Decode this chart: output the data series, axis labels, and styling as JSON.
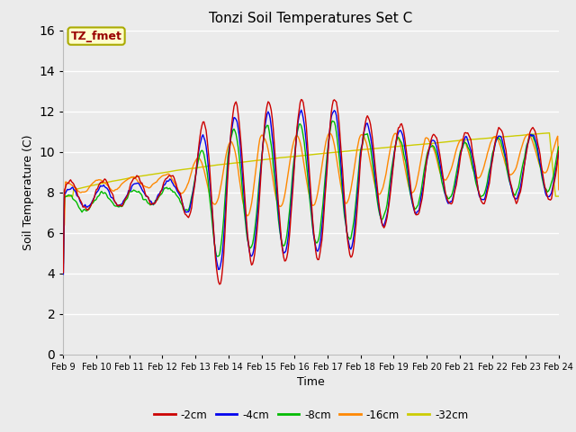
{
  "title": "Tonzi Soil Temperatures Set C",
  "xlabel": "Time",
  "ylabel": "Soil Temperature (C)",
  "ylim": [
    0,
    16
  ],
  "yticks": [
    0,
    2,
    4,
    6,
    8,
    10,
    12,
    14,
    16
  ],
  "legend_label": "TZ_fmet",
  "series_labels": [
    "-2cm",
    "-4cm",
    "-8cm",
    "-16cm",
    "-32cm"
  ],
  "series_colors": [
    "#cc0000",
    "#0000ee",
    "#00bb00",
    "#ff8800",
    "#cccc00"
  ],
  "background_color": "#ebebeb",
  "x_tick_labels": [
    "Feb 9",
    "Feb 10",
    "Feb 11",
    "Feb 12",
    "Feb 13",
    "Feb 14",
    "Feb 15",
    "Feb 16",
    "Feb 17",
    "Feb 18",
    "Feb 19",
    "Feb 20",
    "Feb 21",
    "Feb 22",
    "Feb 23",
    "Feb 24"
  ],
  "n_points": 480
}
